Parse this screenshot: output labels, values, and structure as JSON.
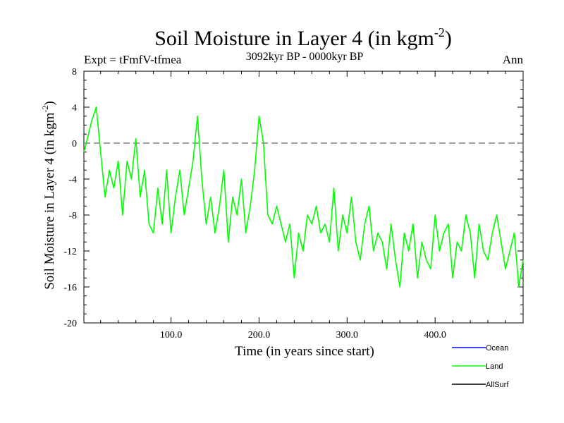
{
  "chart_data": {
    "type": "line",
    "title": "Soil Moisture in Layer 4 (in kgm",
    "title_sup": "-2",
    "title_close": ")",
    "subtitle": "3092kyr BP - 0000kyr BP",
    "left_label": "Expt = tFmfV-tfmea",
    "right_label": "Ann",
    "xlabel": "Time (in years since start)",
    "ylabel": "Soil Moisture in Layer 4 (in kgm",
    "ylabel_sup": "-2",
    "ylabel_close": ")",
    "xlim": [
      1,
      500
    ],
    "ylim": [
      -20,
      8
    ],
    "x_ticks": [
      100,
      200,
      300,
      400
    ],
    "x_tick_labels": [
      "100.0",
      "200.0",
      "300.0",
      "400.0"
    ],
    "y_ticks": [
      8,
      4,
      0,
      -4,
      -8,
      -12,
      -16,
      -20
    ],
    "y_tick_labels": [
      "8",
      "4",
      "0",
      "-4",
      "-8",
      "-12",
      "-16",
      "-20"
    ],
    "zero_line": 0,
    "series": [
      {
        "name": "Ocean",
        "color": "#0000ff",
        "values": []
      },
      {
        "name": "Land",
        "color": "#00ff00",
        "x": [
          1,
          5,
          10,
          15,
          20,
          25,
          30,
          35,
          40,
          45,
          50,
          55,
          60,
          65,
          70,
          75,
          80,
          85,
          90,
          95,
          100,
          105,
          110,
          115,
          120,
          125,
          130,
          135,
          140,
          145,
          150,
          155,
          160,
          165,
          170,
          175,
          180,
          185,
          190,
          195,
          200,
          205,
          210,
          215,
          220,
          225,
          230,
          235,
          240,
          245,
          250,
          255,
          260,
          265,
          270,
          275,
          280,
          285,
          290,
          295,
          300,
          305,
          310,
          315,
          320,
          325,
          330,
          335,
          340,
          345,
          350,
          355,
          360,
          365,
          370,
          375,
          380,
          385,
          390,
          395,
          400,
          405,
          410,
          415,
          420,
          425,
          430,
          435,
          440,
          445,
          450,
          455,
          460,
          465,
          470,
          475,
          480,
          485,
          490,
          495,
          500
        ],
        "values": [
          -1,
          0.5,
          2.5,
          4,
          -1,
          -6,
          -3,
          -5,
          -2,
          -8,
          -2,
          -4,
          0.5,
          -6,
          -3,
          -9,
          -10,
          -5,
          -9,
          -3,
          -10,
          -6,
          -3,
          -8,
          -5,
          -2,
          3,
          -4,
          -9,
          -6,
          -10,
          -7,
          -3,
          -11,
          -6,
          -8,
          -4,
          -10,
          -7,
          -3,
          3,
          0,
          -8,
          -9,
          -7,
          -9,
          -11,
          -9,
          -15,
          -10,
          -12,
          -8,
          -9,
          -7,
          -10,
          -9,
          -11,
          -5,
          -12,
          -8,
          -10,
          -6,
          -11,
          -13,
          -9,
          -7,
          -12,
          -10,
          -11,
          -14,
          -9,
          -13,
          -16,
          -10,
          -12,
          -9,
          -15,
          -11,
          -13,
          -14,
          -8,
          -12,
          -10,
          -9,
          -15,
          -11,
          -12,
          -8,
          -10,
          -15,
          -9,
          -12,
          -13,
          -10,
          -8,
          -11,
          -14,
          -12,
          -10,
          -16,
          -13
        ]
      },
      {
        "name": "AllSurf",
        "color": "#000000",
        "values": []
      }
    ]
  }
}
